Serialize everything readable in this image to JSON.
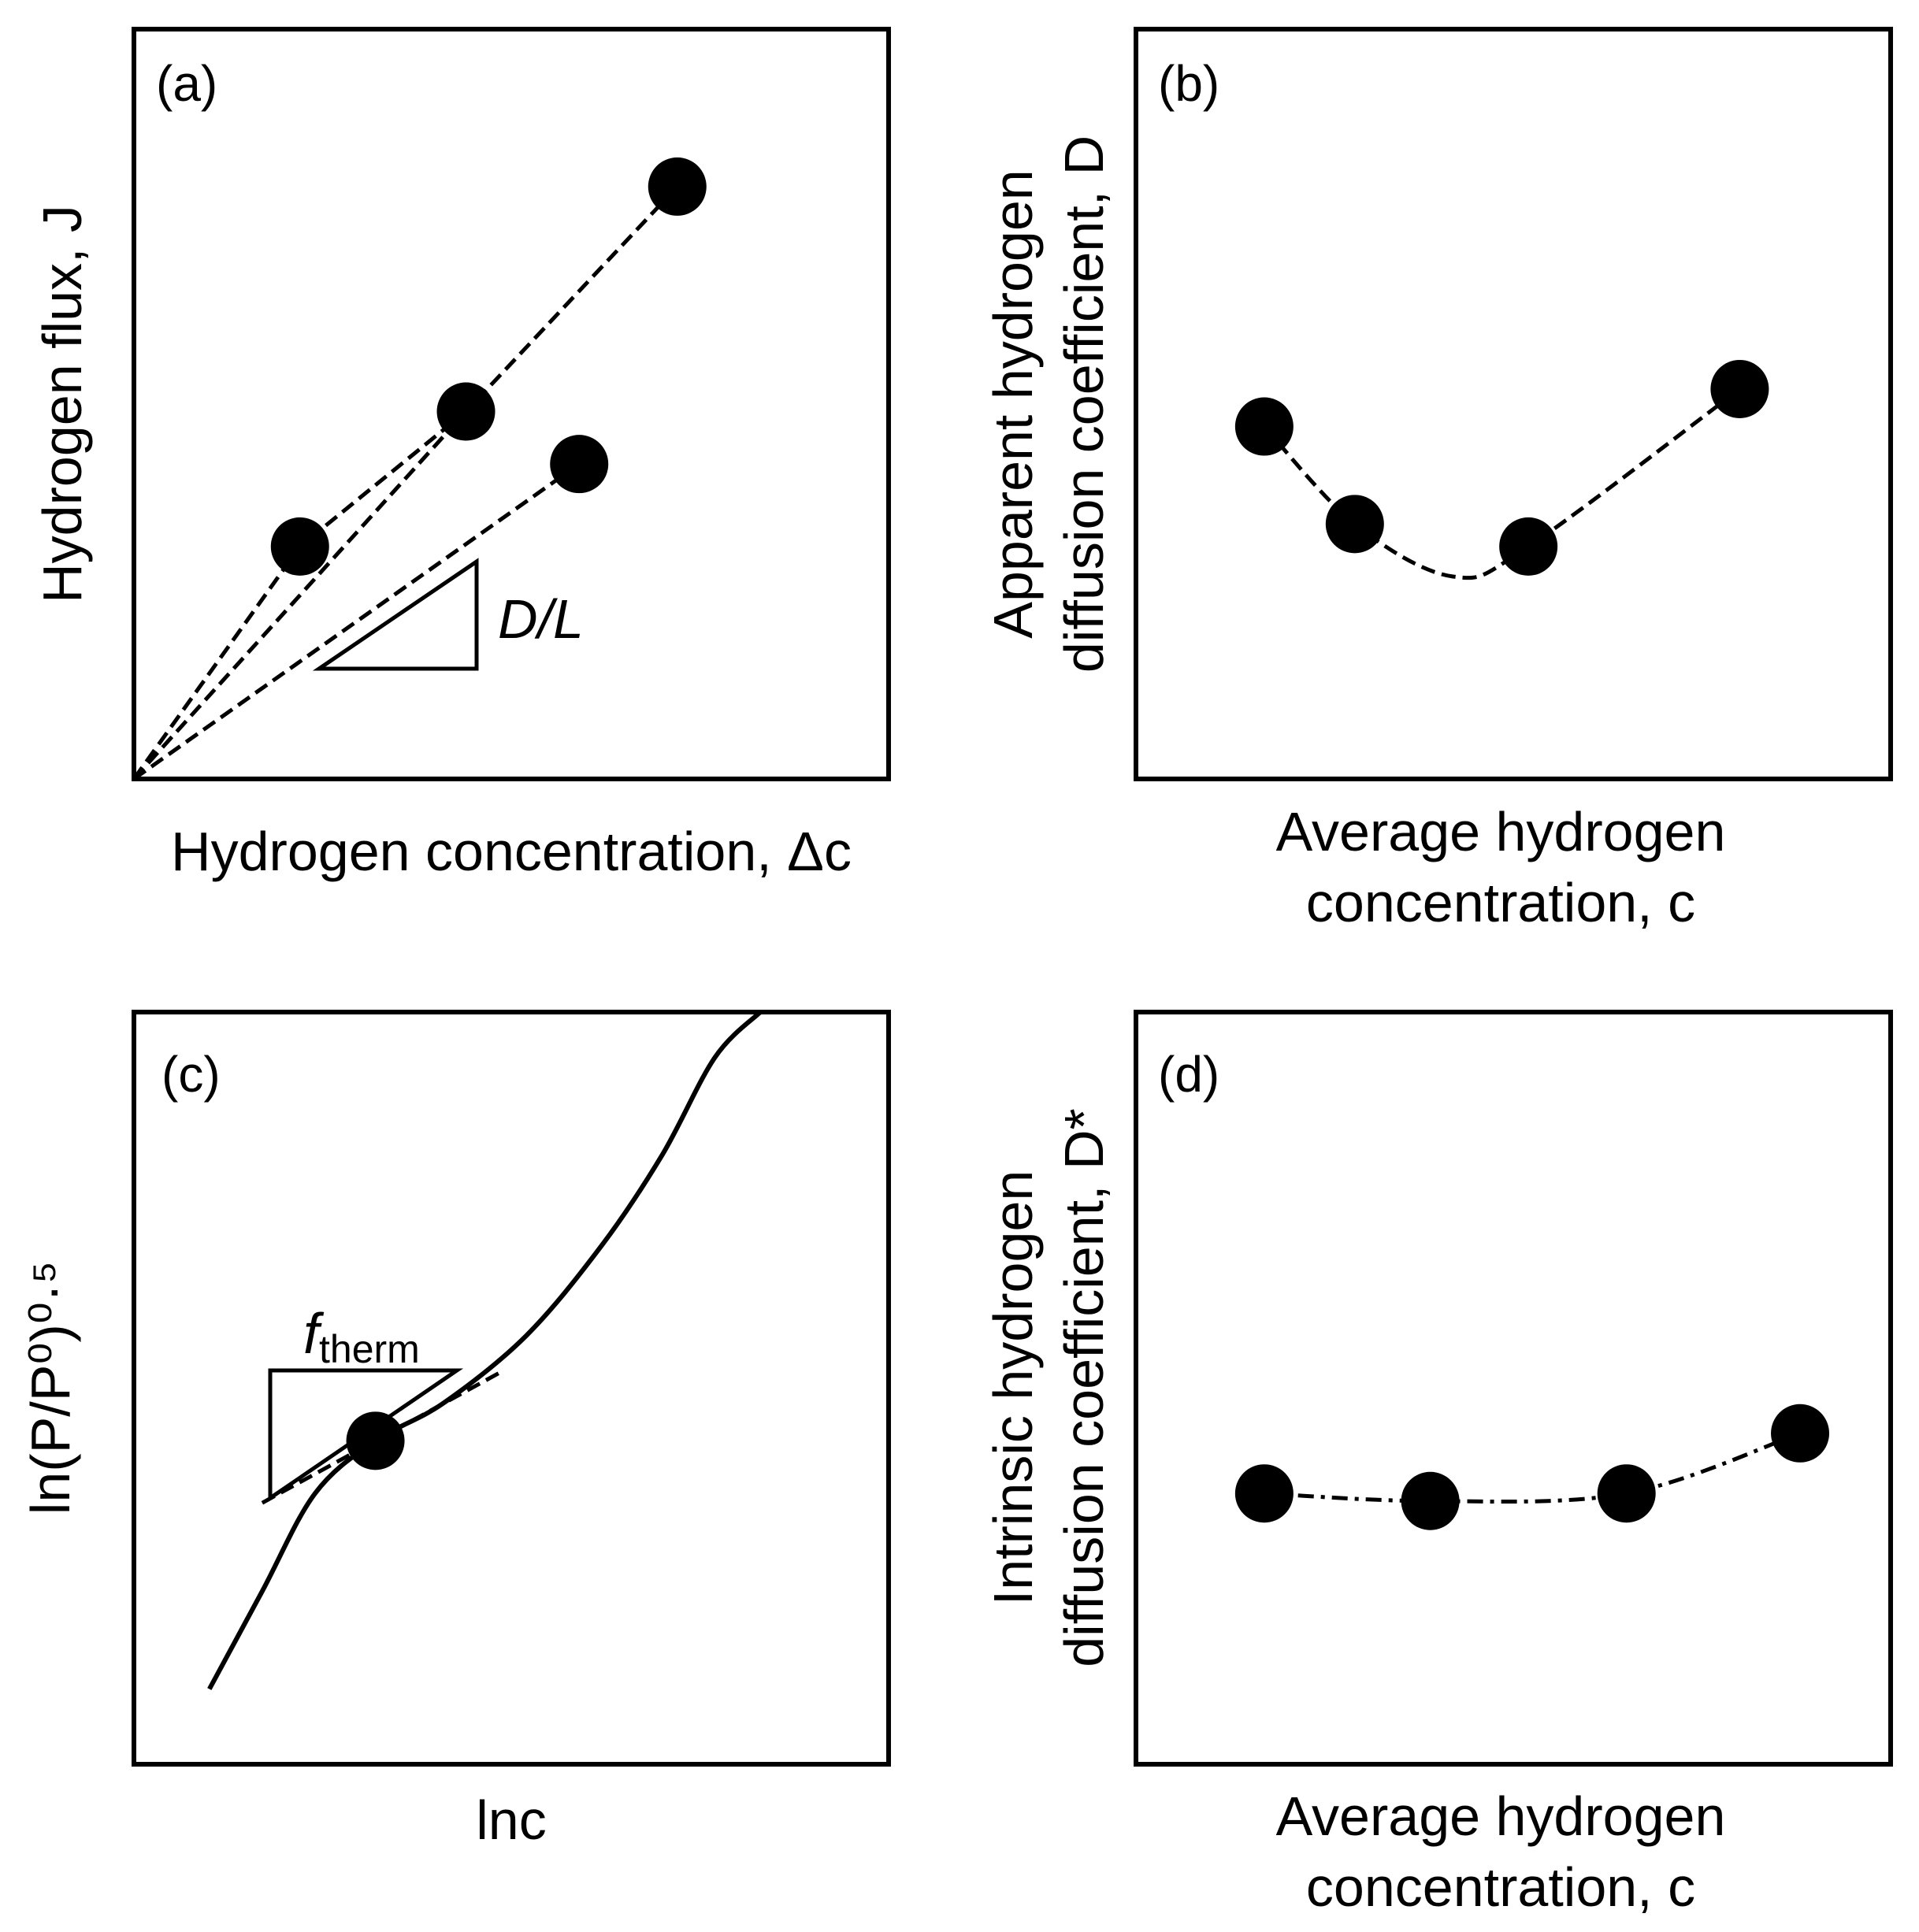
{
  "chart_data": [
    {
      "panel": "(a)",
      "type": "scatter",
      "xlabel": "Hydrogen concentration, Δc",
      "ylabel": "Hydrogen flux, J",
      "annotation": "D/L",
      "series": [
        {
          "x": [
            0,
            0.22,
            0.44
          ],
          "y": [
            0,
            0.31,
            0.49
          ]
        },
        {
          "x": [
            0,
            0.44,
            0.72
          ],
          "y": [
            0,
            0.49,
            0.79
          ]
        },
        {
          "x": [
            0,
            0.59
          ],
          "y": [
            0,
            0.42
          ]
        }
      ],
      "points": [
        {
          "x": 0.22,
          "y": 0.31
        },
        {
          "x": 0.44,
          "y": 0.49
        },
        {
          "x": 0.59,
          "y": 0.42
        },
        {
          "x": 0.72,
          "y": 0.79
        }
      ]
    },
    {
      "panel": "(b)",
      "type": "line",
      "xlabel_line1": "Average hydrogen",
      "xlabel_line2": "concentration, c",
      "ylabel_line1": "Apparent hydrogen",
      "ylabel_line2": "diffusion coefficient, D",
      "x": [
        0.17,
        0.29,
        0.52,
        0.8
      ],
      "y": [
        0.47,
        0.34,
        0.31,
        0.52
      ]
    },
    {
      "panel": "(c)",
      "type": "line",
      "xlabel": "lnc",
      "ylabel": "ln(P/P⁰)⁰·⁵",
      "annotation": "f_therm",
      "annotation_main": "f",
      "annotation_sub": "therm",
      "curve": {
        "x": [
          0.1,
          0.17,
          0.24,
          0.32,
          0.41,
          0.52,
          0.62,
          0.7,
          0.77,
          0.83
        ],
        "y": [
          0.1,
          0.23,
          0.36,
          0.43,
          0.48,
          0.57,
          0.69,
          0.81,
          0.94,
          1.0
        ]
      },
      "tangent_point": {
        "x": 0.32,
        "y": 0.43
      },
      "tangent_slope": 0.55
    },
    {
      "panel": "(d)",
      "type": "line",
      "xlabel_line1": "Average hydrogen",
      "xlabel_line2": "concentration, c",
      "ylabel_line1": "Intrinsic hydrogen",
      "ylabel_line2": "diffusion coefficient, D*",
      "x": [
        0.17,
        0.39,
        0.65,
        0.88
      ],
      "y": [
        0.36,
        0.35,
        0.36,
        0.44
      ]
    }
  ]
}
